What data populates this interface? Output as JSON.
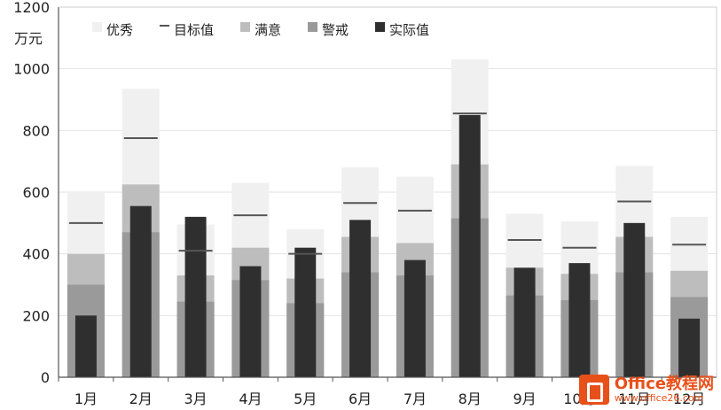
{
  "chart_data": {
    "type": "bar",
    "unit_label": "万元",
    "ylim": [
      0,
      1200
    ],
    "yticks": [
      0,
      200,
      400,
      600,
      800,
      1000,
      1200
    ],
    "categories": [
      "1月",
      "2月",
      "3月",
      "4月",
      "5月",
      "6月",
      "7月",
      "8月",
      "9月",
      "10月",
      "11月",
      "12月"
    ],
    "series": [
      {
        "name": "优秀",
        "kind": "band",
        "color": "#f0f0f0",
        "values": [
          600,
          935,
          495,
          630,
          480,
          680,
          650,
          1030,
          530,
          505,
          685,
          520
        ]
      },
      {
        "name": "满意",
        "kind": "band",
        "color": "#bdbdbd",
        "values": [
          400,
          625,
          330,
          420,
          320,
          455,
          435,
          690,
          355,
          335,
          455,
          345
        ]
      },
      {
        "name": "警戒",
        "kind": "band",
        "color": "#9a9a9a",
        "values": [
          300,
          470,
          245,
          315,
          240,
          340,
          330,
          515,
          265,
          250,
          340,
          260
        ]
      },
      {
        "name": "实际值",
        "kind": "bar",
        "color": "#2f2f2f",
        "values": [
          200,
          555,
          520,
          360,
          420,
          510,
          380,
          850,
          355,
          370,
          500,
          190
        ]
      },
      {
        "name": "目标值",
        "kind": "marker",
        "color": "#555555",
        "values": [
          500,
          775,
          410,
          525,
          400,
          565,
          540,
          855,
          445,
          420,
          570,
          430
        ]
      }
    ],
    "legend_order": [
      "优秀",
      "目标值",
      "满意",
      "警戒",
      "实际值"
    ],
    "legend_position": "top-left",
    "grid": true
  },
  "watermark": {
    "line1": "Office教程网",
    "line2": "www.office26.com",
    "icon": "office-logo-icon"
  }
}
